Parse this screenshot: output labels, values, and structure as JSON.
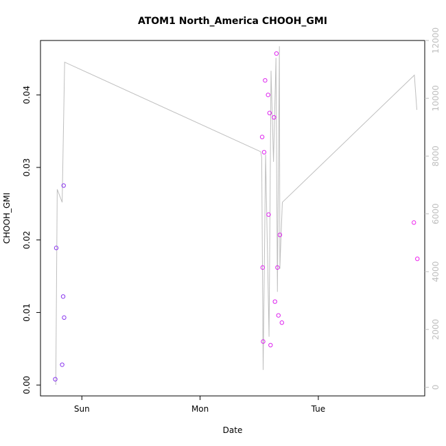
{
  "chart_data": {
    "type": "scatter",
    "title": "ATOM1 North_America CHOOH_GMI",
    "xlabel": "Date",
    "ylabel": "CHOOH_GMI",
    "x_tick_labels": [
      "Sun",
      "Mon",
      "Tue"
    ],
    "x_tick_values": [
      24,
      48,
      72
    ],
    "xlim": [
      15.6,
      93.6
    ],
    "ylim": [
      -0.0015,
      0.0475
    ],
    "y_ticks": [
      0.0,
      0.01,
      0.02,
      0.03,
      0.04
    ],
    "y_tick_labels": [
      "0.00",
      "0.01",
      "0.02",
      "0.03",
      "0.04"
    ],
    "y2lim": [
      -300,
      12000
    ],
    "y2_ticks": [
      0,
      2000,
      4000,
      6000,
      8000,
      10000,
      12000
    ],
    "y2_tick_labels": [
      "0",
      "2000",
      "4000",
      "6000",
      "8000",
      "10000",
      "12000"
    ],
    "grid": false,
    "point_color_low": "#7b2ff7",
    "point_color_high": "#ee22ee",
    "line_color": "#bebebe",
    "points": [
      {
        "x": 18.6,
        "y": 0.0008,
        "color": "#8833ee"
      },
      {
        "x": 18.8,
        "y": 0.0189,
        "color": "#8833ee"
      },
      {
        "x": 20.0,
        "y": 0.0028,
        "color": "#8833ee"
      },
      {
        "x": 20.2,
        "y": 0.0122,
        "color": "#8833ee"
      },
      {
        "x": 20.3,
        "y": 0.0275,
        "color": "#8833ee"
      },
      {
        "x": 20.4,
        "y": 0.0093,
        "color": "#8833ee"
      },
      {
        "x": 60.6,
        "y": 0.0342,
        "color": "#dd22ee"
      },
      {
        "x": 60.7,
        "y": 0.0162,
        "color": "#dd22ee"
      },
      {
        "x": 60.8,
        "y": 0.006,
        "color": "#dd22ee"
      },
      {
        "x": 61.0,
        "y": 0.0321,
        "color": "#dd22ee"
      },
      {
        "x": 61.2,
        "y": 0.042,
        "color": "#dd22ee"
      },
      {
        "x": 61.8,
        "y": 0.04,
        "color": "#dd22ee"
      },
      {
        "x": 61.9,
        "y": 0.0235,
        "color": "#dd22ee"
      },
      {
        "x": 62.1,
        "y": 0.0375,
        "color": "#dd22ee"
      },
      {
        "x": 62.3,
        "y": 0.0055,
        "color": "#dd22ee"
      },
      {
        "x": 63.0,
        "y": 0.0369,
        "color": "#dd22ee"
      },
      {
        "x": 63.2,
        "y": 0.0115,
        "color": "#dd22ee"
      },
      {
        "x": 63.5,
        "y": 0.0457,
        "color": "#dd22ee"
      },
      {
        "x": 63.7,
        "y": 0.0162,
        "color": "#dd22ee"
      },
      {
        "x": 63.9,
        "y": 0.0096,
        "color": "#dd22ee"
      },
      {
        "x": 64.2,
        "y": 0.0207,
        "color": "#dd22ee"
      },
      {
        "x": 64.6,
        "y": 0.0086,
        "color": "#dd22ee"
      },
      {
        "x": 91.4,
        "y": 0.0224,
        "color": "#ee22ee"
      },
      {
        "x": 92.1,
        "y": 0.0174,
        "color": "#ee22ee"
      }
    ],
    "line": {
      "name": "",
      "axis": "right",
      "x": [
        18.7,
        19.0,
        20.0,
        20.5,
        60.3,
        60.5,
        60.8,
        61.3,
        62.0,
        62.4,
        62.9,
        63.4,
        63.7,
        64.1,
        64.2,
        64.3,
        64.7,
        91.5,
        92.0
      ],
      "y": [
        80,
        6850,
        6400,
        11250,
        8150,
        7950,
        600,
        8050,
        1750,
        10950,
        7800,
        11400,
        3300,
        11800,
        4100,
        4600,
        6400,
        10800,
        9600
      ]
    }
  }
}
